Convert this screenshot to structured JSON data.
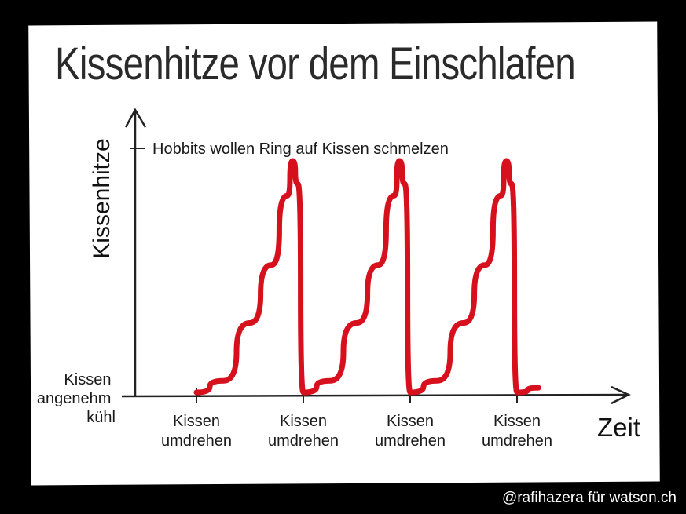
{
  "chart_data": {
    "type": "line",
    "title": "Kissenhitze vor dem Einschlafen",
    "xlabel": "Zeit",
    "ylabel": "Kissenhitze",
    "y_min_label": "Kissen angenehm kühl",
    "y_max_label": "Hobbits wollen Ring auf Kissen schmelzen",
    "x_tick_labels": [
      "Kissen umdrehen",
      "Kissen umdrehen",
      "Kissen umdrehen",
      "Kissen umdrehen"
    ],
    "x_ticks": [
      0,
      1,
      2,
      3
    ],
    "series": [
      {
        "values": [
          [
            0,
            0
          ],
          [
            0.25,
            0.05
          ],
          [
            0.5,
            0.3
          ],
          [
            0.7,
            0.55
          ],
          [
            0.85,
            0.85
          ],
          [
            0.9,
            1.0
          ],
          [
            0.95,
            0.9
          ],
          [
            1,
            0
          ],
          [
            1.25,
            0.05
          ],
          [
            1.5,
            0.3
          ],
          [
            1.7,
            0.55
          ],
          [
            1.85,
            0.85
          ],
          [
            1.9,
            1.0
          ],
          [
            1.95,
            0.9
          ],
          [
            2,
            0
          ],
          [
            2.25,
            0.05
          ],
          [
            2.5,
            0.3
          ],
          [
            2.7,
            0.55
          ],
          [
            2.85,
            0.85
          ],
          [
            2.9,
            1.0
          ],
          [
            2.95,
            0.9
          ],
          [
            3,
            0
          ],
          [
            3.2,
            0.02
          ]
        ]
      }
    ],
    "ylim": [
      0,
      1
    ],
    "colors": {
      "line": "#d7101d",
      "axis": "#222222"
    }
  },
  "credit": "@rafihazera für watson.ch"
}
